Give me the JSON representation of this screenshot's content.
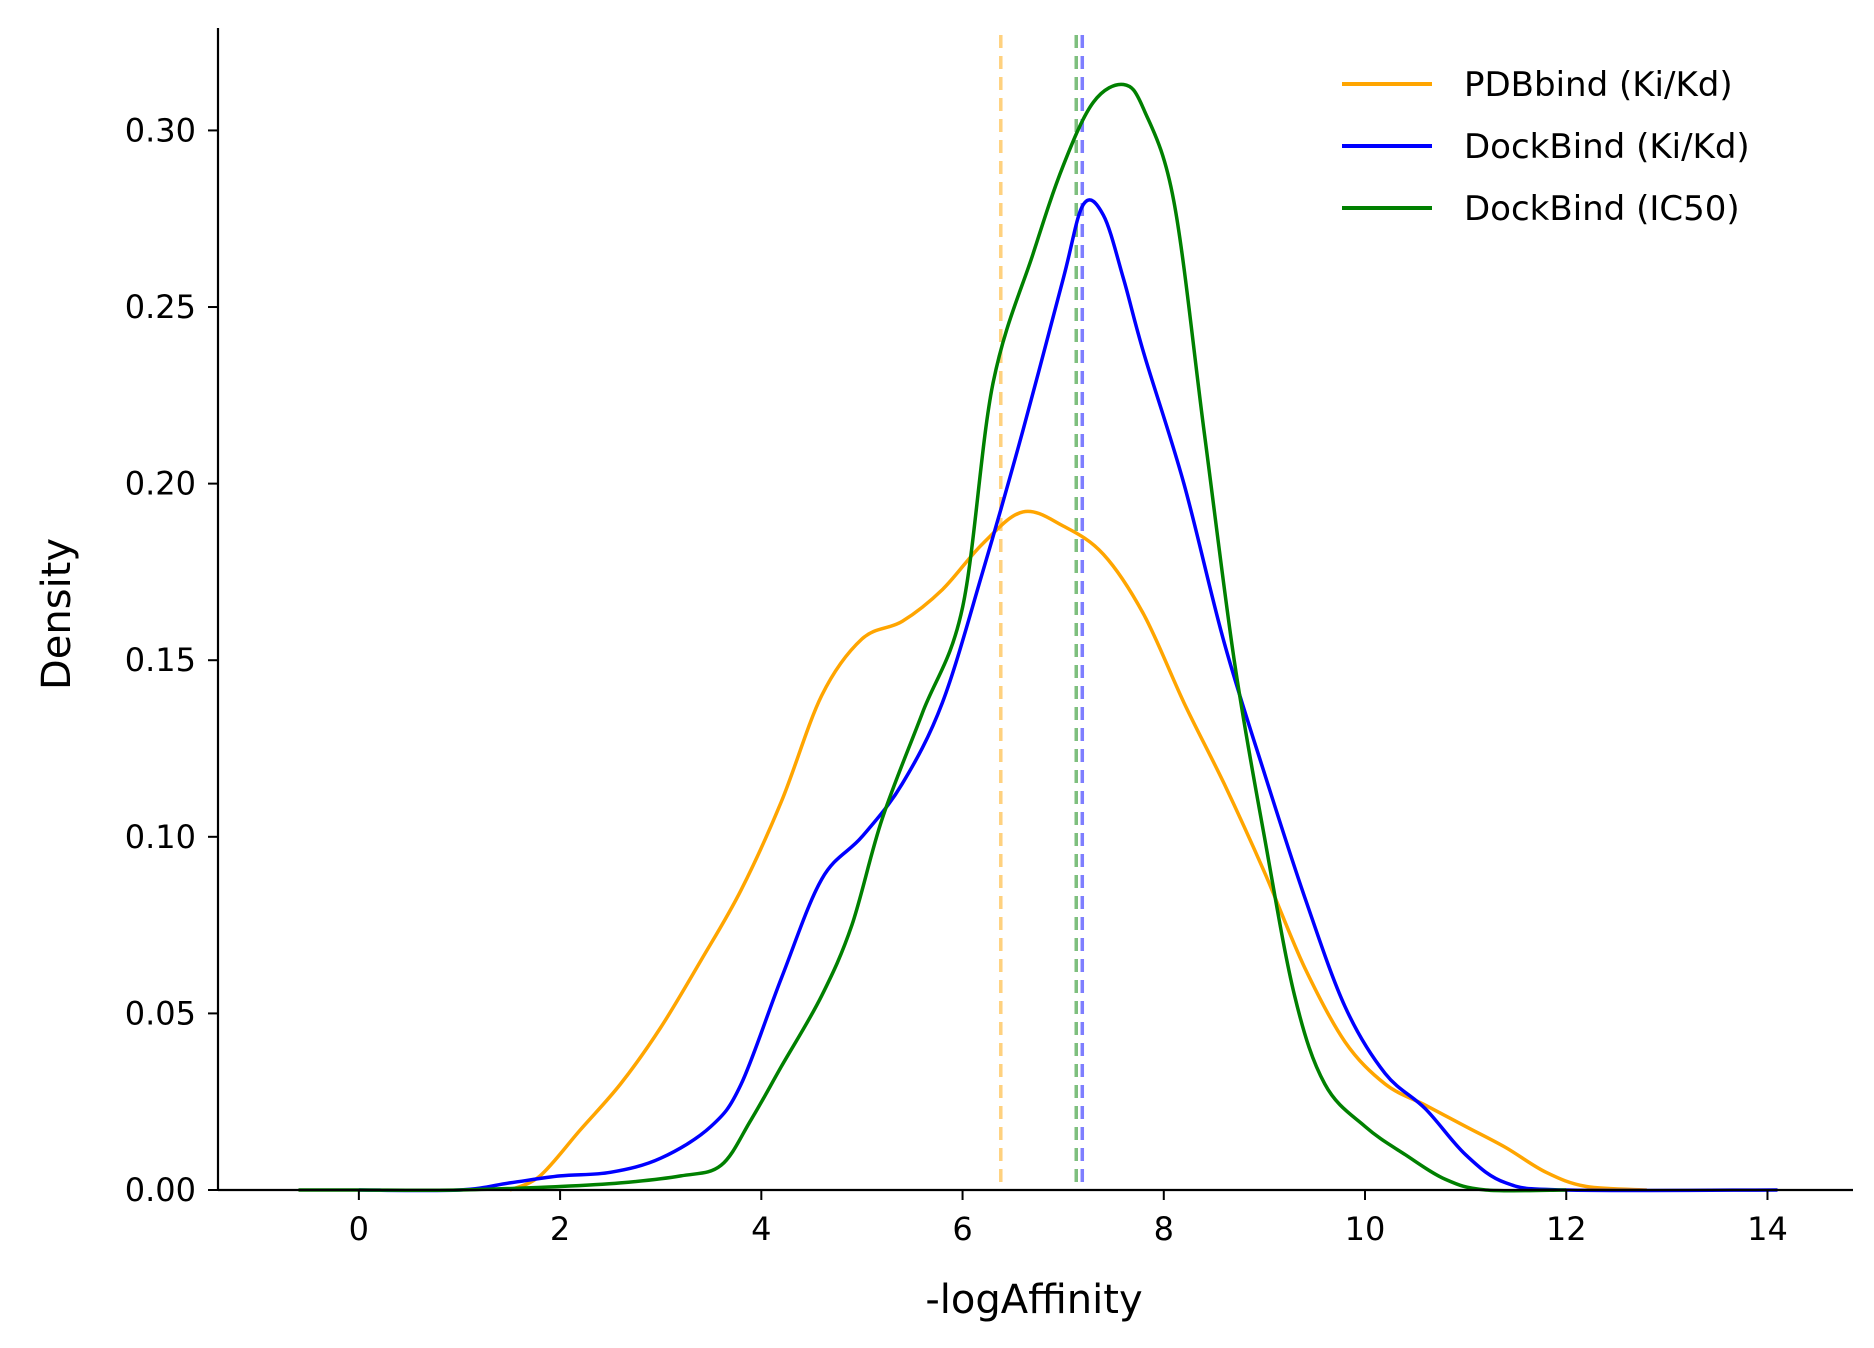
{
  "chart_data": {
    "type": "line",
    "title": "",
    "xlabel": "-logAffinity",
    "ylabel": "Density",
    "xlim": [
      -1.4,
      14.85
    ],
    "ylim": [
      0,
      0.329
    ],
    "xticks": [
      0,
      2,
      4,
      6,
      8,
      10,
      12,
      14
    ],
    "xtick_labels": [
      "0",
      "2",
      "4",
      "6",
      "8",
      "10",
      "12",
      "14"
    ],
    "yticks": [
      0,
      0.05,
      0.1,
      0.15,
      0.2,
      0.25,
      0.3
    ],
    "ytick_labels": [
      "0.00",
      "0.05",
      "0.10",
      "0.15",
      "0.20",
      "0.25",
      "0.30"
    ],
    "grid": false,
    "legend_position": "top-right",
    "series": [
      {
        "name": "PDBbind (Ki/Kd)",
        "color": "#FFA500",
        "mean": 6.38,
        "points": [
          [
            1.5,
            0.0
          ],
          [
            1.8,
            0.004
          ],
          [
            2.2,
            0.017
          ],
          [
            2.6,
            0.03
          ],
          [
            3.0,
            0.046
          ],
          [
            3.4,
            0.065
          ],
          [
            3.8,
            0.085
          ],
          [
            4.2,
            0.11
          ],
          [
            4.6,
            0.14
          ],
          [
            5.0,
            0.156
          ],
          [
            5.4,
            0.161
          ],
          [
            5.8,
            0.17
          ],
          [
            6.2,
            0.183
          ],
          [
            6.6,
            0.192
          ],
          [
            7.0,
            0.188
          ],
          [
            7.4,
            0.18
          ],
          [
            7.8,
            0.163
          ],
          [
            8.2,
            0.138
          ],
          [
            8.6,
            0.115
          ],
          [
            9.0,
            0.09
          ],
          [
            9.4,
            0.063
          ],
          [
            9.8,
            0.042
          ],
          [
            10.2,
            0.03
          ],
          [
            10.6,
            0.024
          ],
          [
            11.0,
            0.018
          ],
          [
            11.4,
            0.012
          ],
          [
            11.8,
            0.005
          ],
          [
            12.2,
            0.001
          ],
          [
            12.8,
            0.0
          ]
        ]
      },
      {
        "name": "DockBind (Ki/Kd)",
        "color": "#0000FF",
        "mean": 7.19,
        "points": [
          [
            0.0,
            0.0
          ],
          [
            1.0,
            0.0
          ],
          [
            1.5,
            0.002
          ],
          [
            2.0,
            0.004
          ],
          [
            2.5,
            0.005
          ],
          [
            3.0,
            0.009
          ],
          [
            3.5,
            0.018
          ],
          [
            3.8,
            0.03
          ],
          [
            4.2,
            0.06
          ],
          [
            4.6,
            0.088
          ],
          [
            5.0,
            0.1
          ],
          [
            5.4,
            0.115
          ],
          [
            5.8,
            0.138
          ],
          [
            6.2,
            0.175
          ],
          [
            6.6,
            0.215
          ],
          [
            7.0,
            0.258
          ],
          [
            7.2,
            0.279
          ],
          [
            7.4,
            0.276
          ],
          [
            7.6,
            0.258
          ],
          [
            7.8,
            0.237
          ],
          [
            8.2,
            0.2
          ],
          [
            8.6,
            0.155
          ],
          [
            9.0,
            0.118
          ],
          [
            9.4,
            0.083
          ],
          [
            9.8,
            0.052
          ],
          [
            10.2,
            0.033
          ],
          [
            10.6,
            0.023
          ],
          [
            11.0,
            0.01
          ],
          [
            11.4,
            0.002
          ],
          [
            12.0,
            0.0
          ],
          [
            14.1,
            0.0
          ]
        ]
      },
      {
        "name": "DockBind (IC50)",
        "color": "#008000",
        "mean": 7.13,
        "points": [
          [
            -0.6,
            0.0
          ],
          [
            0.0,
            0.0
          ],
          [
            1.0,
            0.0
          ],
          [
            2.0,
            0.001
          ],
          [
            2.6,
            0.002
          ],
          [
            3.2,
            0.004
          ],
          [
            3.6,
            0.007
          ],
          [
            3.9,
            0.02
          ],
          [
            4.2,
            0.035
          ],
          [
            4.6,
            0.055
          ],
          [
            4.9,
            0.075
          ],
          [
            5.2,
            0.105
          ],
          [
            5.6,
            0.135
          ],
          [
            6.0,
            0.165
          ],
          [
            6.3,
            0.228
          ],
          [
            6.7,
            0.265
          ],
          [
            7.0,
            0.29
          ],
          [
            7.3,
            0.308
          ],
          [
            7.6,
            0.313
          ],
          [
            7.8,
            0.306
          ],
          [
            8.1,
            0.28
          ],
          [
            8.4,
            0.215
          ],
          [
            8.7,
            0.15
          ],
          [
            9.0,
            0.1
          ],
          [
            9.3,
            0.055
          ],
          [
            9.6,
            0.03
          ],
          [
            10.0,
            0.018
          ],
          [
            10.4,
            0.01
          ],
          [
            10.8,
            0.003
          ],
          [
            11.2,
            0.0
          ],
          [
            12.0,
            0.0
          ]
        ]
      }
    ]
  }
}
